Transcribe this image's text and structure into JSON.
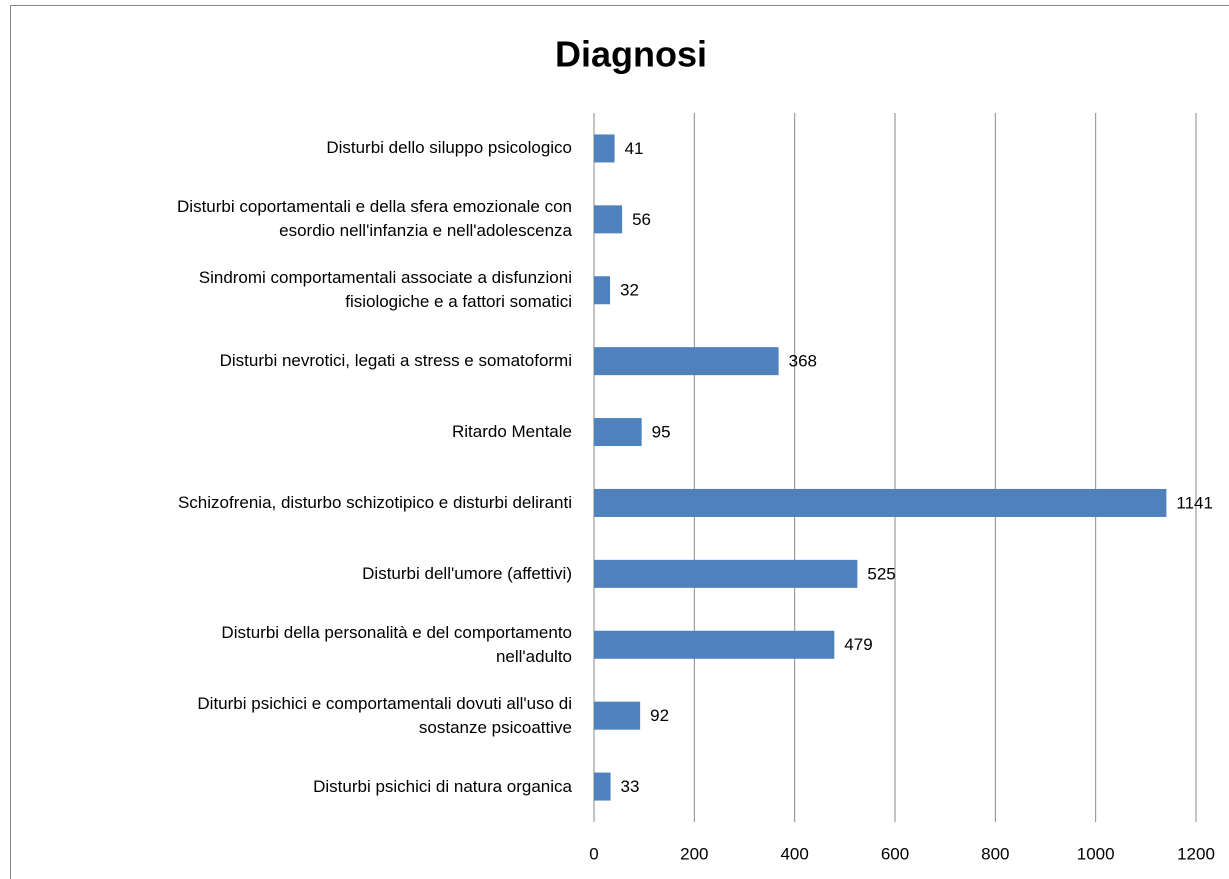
{
  "chart_data": {
    "type": "bar",
    "orientation": "horizontal",
    "title": "Diagnosi",
    "categories": [
      "Disturbi dello siluppo psicologico",
      "Disturbi coportamentali e della sfera emozionale con\nesordio nell'infanzia e nell'adolescenza",
      "Sindromi comportamentali associate a disfunzioni\nfisiologiche e a fattori somatici",
      "Disturbi nevrotici, legati a stress e somatoformi",
      "Ritardo Mentale",
      "Schizofrenia, disturbo schizotipico e disturbi deliranti",
      "Disturbi dell'umore (affettivi)",
      "Disturbi della personalità e del comportamento\nnell'adulto",
      "Diturbi psichici e comportamentali dovuti all'uso di\nsostanze psicoattive",
      "Disturbi psichici di natura organica"
    ],
    "values": [
      41,
      56,
      32,
      368,
      95,
      1141,
      525,
      479,
      92,
      33
    ],
    "color": "#4f81bd",
    "xlim": [
      0,
      1200
    ],
    "xticks": [
      0,
      200,
      400,
      600,
      800,
      1000,
      1200
    ],
    "grid": true
  }
}
